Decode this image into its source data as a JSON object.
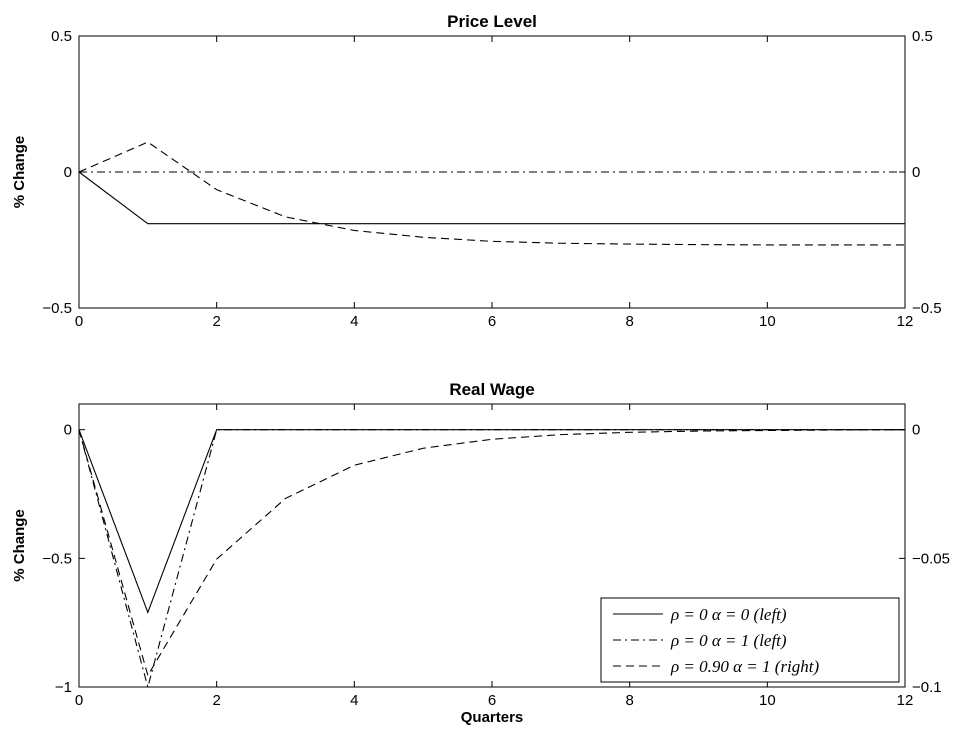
{
  "chart_data": [
    {
      "type": "line",
      "title": "Price Level",
      "xlabel": "",
      "ylabel": "% Change",
      "xlim": [
        0,
        12
      ],
      "xticks": [
        0,
        2,
        4,
        6,
        8,
        10,
        12
      ],
      "xtick_labels": [
        "0",
        "2",
        "4",
        "6",
        "8",
        "10",
        "12"
      ],
      "ylim": [
        -0.5,
        0.5
      ],
      "yticks": [
        -0.5,
        0,
        0.5
      ],
      "ytick_labels": [
        "−0.5",
        "0",
        "0.5"
      ],
      "ylim_right": [
        -0.5,
        0.5
      ],
      "yticks_right": [
        -0.5,
        0,
        0.5
      ],
      "ytick_labels_right": [
        "−0.5",
        "0",
        "0.5"
      ],
      "grid": false,
      "series": [
        {
          "axis": "left",
          "style": "solid",
          "color": "#000000",
          "x": [
            0,
            1,
            2,
            3,
            4,
            5,
            6,
            7,
            8,
            9,
            10,
            11,
            12
          ],
          "y": [
            0,
            -0.19,
            -0.19,
            -0.19,
            -0.19,
            -0.19,
            -0.19,
            -0.19,
            -0.19,
            -0.19,
            -0.19,
            -0.19,
            -0.19
          ]
        },
        {
          "axis": "left",
          "style": "dashdot",
          "color": "#000000",
          "x": [
            0,
            1,
            2,
            3,
            4,
            5,
            6,
            7,
            8,
            9,
            10,
            11,
            12
          ],
          "y": [
            0,
            0,
            0,
            0,
            0,
            0,
            0,
            0,
            0,
            0,
            0,
            0,
            0
          ]
        },
        {
          "axis": "right",
          "style": "dashed",
          "color": "#000000",
          "x": [
            0,
            1,
            2,
            3,
            4,
            5,
            6,
            7,
            8,
            9,
            10,
            11,
            12
          ],
          "y": [
            0,
            0.11,
            -0.065,
            -0.165,
            -0.215,
            -0.24,
            -0.255,
            -0.262,
            -0.265,
            -0.267,
            -0.268,
            -0.268,
            -0.268
          ]
        }
      ]
    },
    {
      "type": "line",
      "title": "Real Wage",
      "xlabel": "Quarters",
      "ylabel": "% Change",
      "xlim": [
        0,
        12
      ],
      "xticks": [
        0,
        2,
        4,
        6,
        8,
        10,
        12
      ],
      "xtick_labels": [
        "0",
        "2",
        "4",
        "6",
        "8",
        "10",
        "12"
      ],
      "ylim": [
        -1,
        0.1
      ],
      "yticks": [
        -1,
        -0.5,
        0
      ],
      "ytick_labels": [
        "−1",
        "−0.5",
        "0"
      ],
      "ylim_right": [
        -0.1,
        0.01
      ],
      "yticks_right": [
        -0.1,
        -0.05,
        0
      ],
      "ytick_labels_right": [
        "−0.1",
        "−0.05",
        "0"
      ],
      "grid": false,
      "legend_position": "bottom-right",
      "legend": [
        {
          "style": "solid",
          "label": "ρ = 0 α = 0 (left)"
        },
        {
          "style": "dashdot",
          "label": "ρ = 0 α = 1 (left)"
        },
        {
          "style": "dashed",
          "label": "ρ = 0.90 α = 1 (right)"
        }
      ],
      "series": [
        {
          "axis": "left",
          "style": "solid",
          "color": "#000000",
          "x": [
            0,
            1,
            2,
            3,
            4,
            5,
            6,
            7,
            8,
            9,
            10,
            11,
            12
          ],
          "y": [
            0,
            -0.71,
            0,
            0,
            0,
            0,
            0,
            0,
            0,
            0,
            0,
            0,
            0
          ]
        },
        {
          "axis": "left",
          "style": "dashdot",
          "color": "#000000",
          "x": [
            0,
            1,
            2,
            3,
            4,
            5,
            6,
            7,
            8,
            9,
            10,
            11,
            12
          ],
          "y": [
            0,
            -1.0,
            0,
            0,
            0,
            0,
            0,
            0,
            0,
            0,
            0,
            0,
            0
          ]
        },
        {
          "axis": "right",
          "style": "dashed",
          "color": "#000000",
          "x": [
            0,
            1,
            2,
            3,
            4,
            5,
            6,
            7,
            8,
            9,
            10,
            11,
            12
          ],
          "y": [
            0,
            -0.0955,
            -0.0503,
            -0.0267,
            -0.0138,
            -0.0072,
            -0.0037,
            -0.0019,
            -0.001,
            -0.0005,
            -0.0003,
            -0.0001,
            0
          ]
        }
      ]
    }
  ]
}
